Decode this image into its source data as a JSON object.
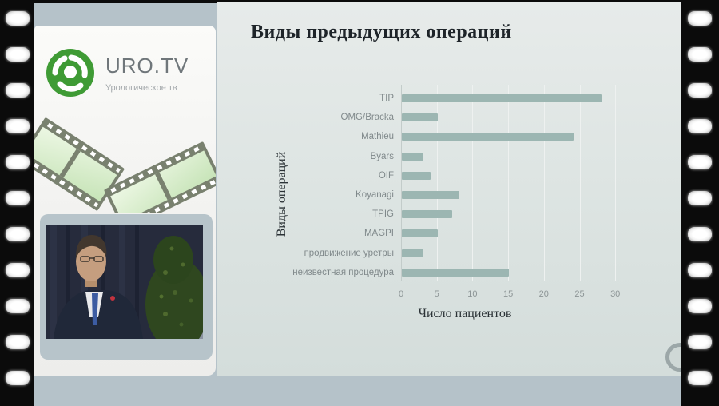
{
  "broadcast": {
    "channel": {
      "brand": "URO.TV",
      "tagline": "Урологическое тв",
      "logo_color": "#3f9b35"
    }
  },
  "monitor": {
    "logo": {
      "brand": "URO.TV",
      "tagline": "Урологическое тв"
    }
  },
  "chart_data": {
    "type": "bar",
    "orientation": "horizontal",
    "title": "Виды предыдущих операций",
    "categories": [
      "TIP",
      "OMG/Bracka",
      "Mathieu",
      "Byars",
      "OIF",
      "Koyanagi",
      "TPIG",
      "MAGPI",
      "продвижение уретры",
      "неизвестная процедура"
    ],
    "values": [
      28,
      5,
      24,
      3,
      4,
      8,
      7,
      5,
      3,
      15
    ],
    "xlabel": "Число пациентов",
    "ylabel": "Виды операций",
    "xlim": [
      0,
      32
    ],
    "xticks": [
      0,
      5,
      10,
      15,
      20,
      25,
      30
    ],
    "grid": true,
    "legend": false,
    "bar_color": "#9cb6b2"
  },
  "colors": {
    "background": "#b5c2c9",
    "film_strip": "#0b0b0b",
    "slide_bg": "#dde4e2",
    "bar": "#9cb6b2",
    "accent_green": "#3f9b35"
  }
}
